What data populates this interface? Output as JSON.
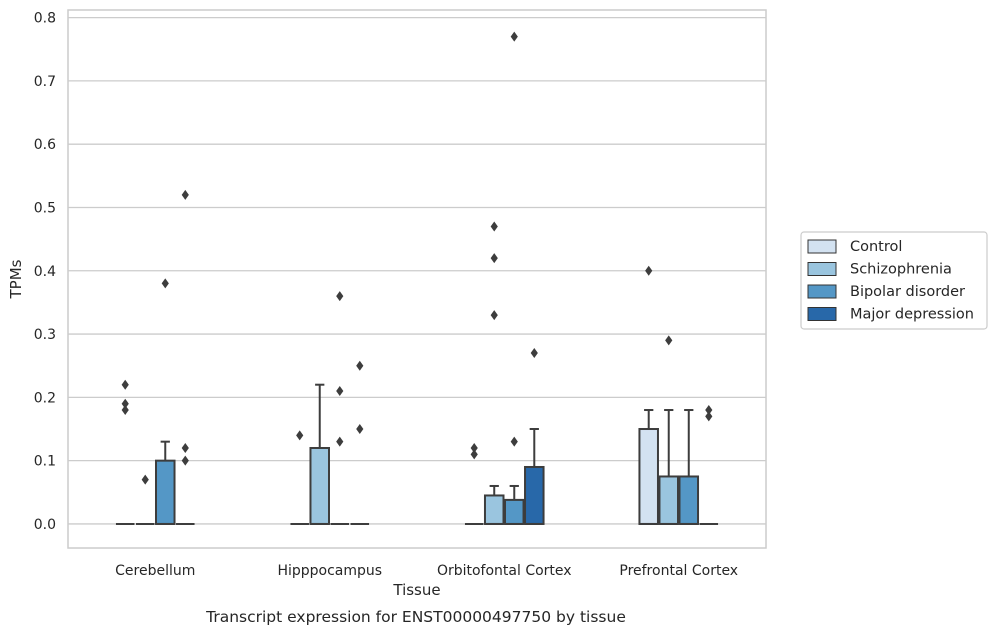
{
  "chart_data": {
    "type": "box",
    "xlabel": "Tissue",
    "ylabel": "TPMs",
    "caption": "Transcript expression for ENST00000497750 by tissue",
    "categories": [
      "Cerebellum",
      "Hipppocampus",
      "Orbitofontal Cortex",
      "Prefrontal Cortex"
    ],
    "ylim": [
      -0.038,
      0.812
    ],
    "yticks": [
      "0.0",
      "0.1",
      "0.2",
      "0.3",
      "0.4",
      "0.5",
      "0.6",
      "0.7",
      "0.8"
    ],
    "grid": true,
    "legend_position": "right",
    "series": [
      {
        "name": "Control",
        "color": "#d3e2f1",
        "boxes": [
          {
            "q1": 0,
            "median": 0,
            "q3": 0,
            "whisker_low": 0,
            "whisker_high": 0,
            "outliers": [
              0.22,
              0.19,
              0.18
            ]
          },
          {
            "q1": 0,
            "median": 0,
            "q3": 0,
            "whisker_low": 0,
            "whisker_high": 0,
            "outliers": [
              0.14
            ]
          },
          {
            "q1": 0,
            "median": 0,
            "q3": 0,
            "whisker_low": 0,
            "whisker_high": 0,
            "outliers": [
              0.12,
              0.11
            ]
          },
          {
            "q1": 0,
            "median": 0,
            "q3": 0.15,
            "whisker_low": 0,
            "whisker_high": 0.18,
            "outliers": [
              0.4
            ]
          }
        ]
      },
      {
        "name": "Schizophrenia",
        "color": "#9ac5df",
        "boxes": [
          {
            "q1": 0,
            "median": 0,
            "q3": 0,
            "whisker_low": 0,
            "whisker_high": 0,
            "outliers": [
              0.07
            ]
          },
          {
            "q1": 0,
            "median": 0,
            "q3": 0.12,
            "whisker_low": 0,
            "whisker_high": 0.22,
            "outliers": []
          },
          {
            "q1": 0,
            "median": 0,
            "q3": 0.045,
            "whisker_low": 0,
            "whisker_high": 0.06,
            "outliers": [
              0.47,
              0.42,
              0.33
            ]
          },
          {
            "q1": 0,
            "median": 0,
            "q3": 0.075,
            "whisker_low": 0,
            "whisker_high": 0.18,
            "outliers": [
              0.29
            ]
          }
        ]
      },
      {
        "name": "Bipolar disorder",
        "color": "#5497c6",
        "boxes": [
          {
            "q1": 0,
            "median": 0,
            "q3": 0.1,
            "whisker_low": 0,
            "whisker_high": 0.13,
            "outliers": [
              0.38
            ]
          },
          {
            "q1": 0,
            "median": 0,
            "q3": 0,
            "whisker_low": 0,
            "whisker_high": 0,
            "outliers": [
              0.36,
              0.21,
              0.13
            ]
          },
          {
            "q1": 0,
            "median": 0,
            "q3": 0.038,
            "whisker_low": 0,
            "whisker_high": 0.06,
            "outliers": [
              0.77,
              0.13
            ]
          },
          {
            "q1": 0,
            "median": 0,
            "q3": 0.075,
            "whisker_low": 0,
            "whisker_high": 0.18,
            "outliers": []
          }
        ]
      },
      {
        "name": "Major depression",
        "color": "#2868a9",
        "boxes": [
          {
            "q1": 0,
            "median": 0,
            "q3": 0,
            "whisker_low": 0,
            "whisker_high": 0,
            "outliers": [
              0.52,
              0.12,
              0.1
            ]
          },
          {
            "q1": 0,
            "median": 0,
            "q3": 0,
            "whisker_low": 0,
            "whisker_high": 0,
            "outliers": [
              0.25,
              0.15
            ]
          },
          {
            "q1": 0,
            "median": 0,
            "q3": 0.09,
            "whisker_low": 0,
            "whisker_high": 0.15,
            "outliers": [
              0.27
            ]
          },
          {
            "q1": 0,
            "median": 0,
            "q3": 0,
            "whisker_low": 0,
            "whisker_high": 0,
            "outliers": [
              0.18,
              0.17
            ]
          }
        ]
      }
    ]
  }
}
